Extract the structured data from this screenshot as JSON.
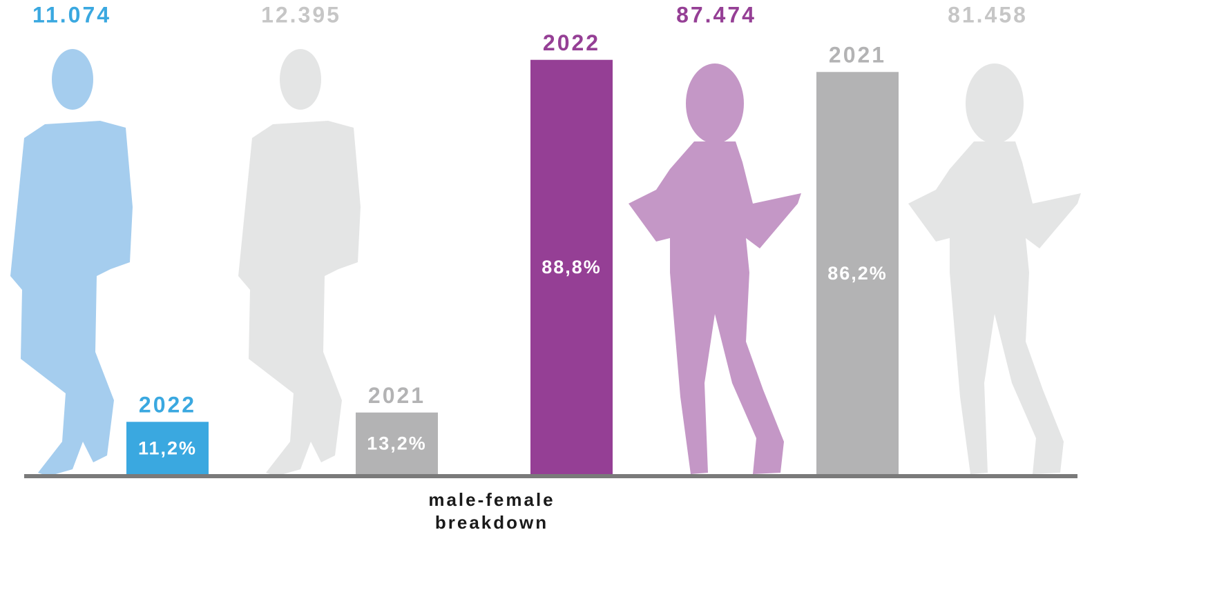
{
  "chart_data": {
    "type": "bar",
    "title": "male-female breakdown",
    "categories": [
      "2022",
      "2021",
      "2022",
      "2021"
    ],
    "values": [
      11.2,
      13.2,
      88.8,
      86.2
    ],
    "value_labels": [
      "11,2%",
      "13,2%",
      "88,8%",
      "86,2%"
    ],
    "counts": [
      11074,
      12395,
      87474,
      81458
    ],
    "count_labels": [
      "11.074",
      "12.395",
      "87.474",
      "81.458"
    ],
    "colors": [
      "#3aa8e0",
      "#b3b3b4",
      "#953f95",
      "#b3b3b4"
    ],
    "count_colors": [
      "#3aa8e0",
      "#c6c6c6",
      "#953f95",
      "#c6c6c6"
    ]
  }
}
